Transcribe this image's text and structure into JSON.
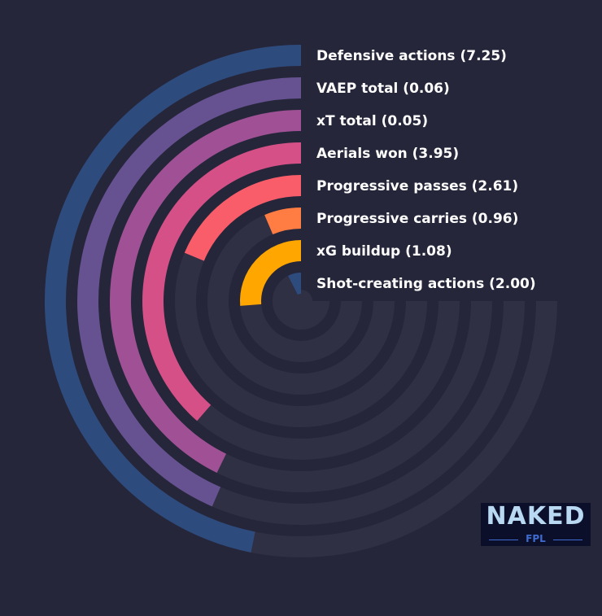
{
  "chart_data": {
    "type": "radial-bar",
    "series": [
      {
        "label": "Defensive actions (7.25)",
        "value": 7.25,
        "fraction": 0.625,
        "color": "#2e4b7e"
      },
      {
        "label": "VAEP total (0.06)",
        "value": 0.06,
        "fraction": 0.58,
        "color": "#665191"
      },
      {
        "label": "xT total (0.05)",
        "value": 0.05,
        "fraction": 0.57,
        "color": "#a05195"
      },
      {
        "label": "Aerials won (3.95)",
        "value": 3.95,
        "fraction": 0.515,
        "color": "#d45087"
      },
      {
        "label": "Progressive passes (2.61)",
        "value": 2.61,
        "fraction": 0.25,
        "color": "#f95d6a"
      },
      {
        "label": "Progressive carries (0.96)",
        "value": 0.96,
        "fraction": 0.085,
        "color": "#ff7c43"
      },
      {
        "label": "xG buildup (1.08)",
        "value": 1.08,
        "fraction": 0.35,
        "color": "#ffa600"
      },
      {
        "label": "Shot-creating actions (2.00)",
        "value": 2.0,
        "fraction": 0.1,
        "color": "#2e4b7e"
      }
    ],
    "track_color": "#2f3044",
    "background": "#25263a"
  },
  "logo": {
    "word": "NAKED",
    "sub": "FPL"
  }
}
